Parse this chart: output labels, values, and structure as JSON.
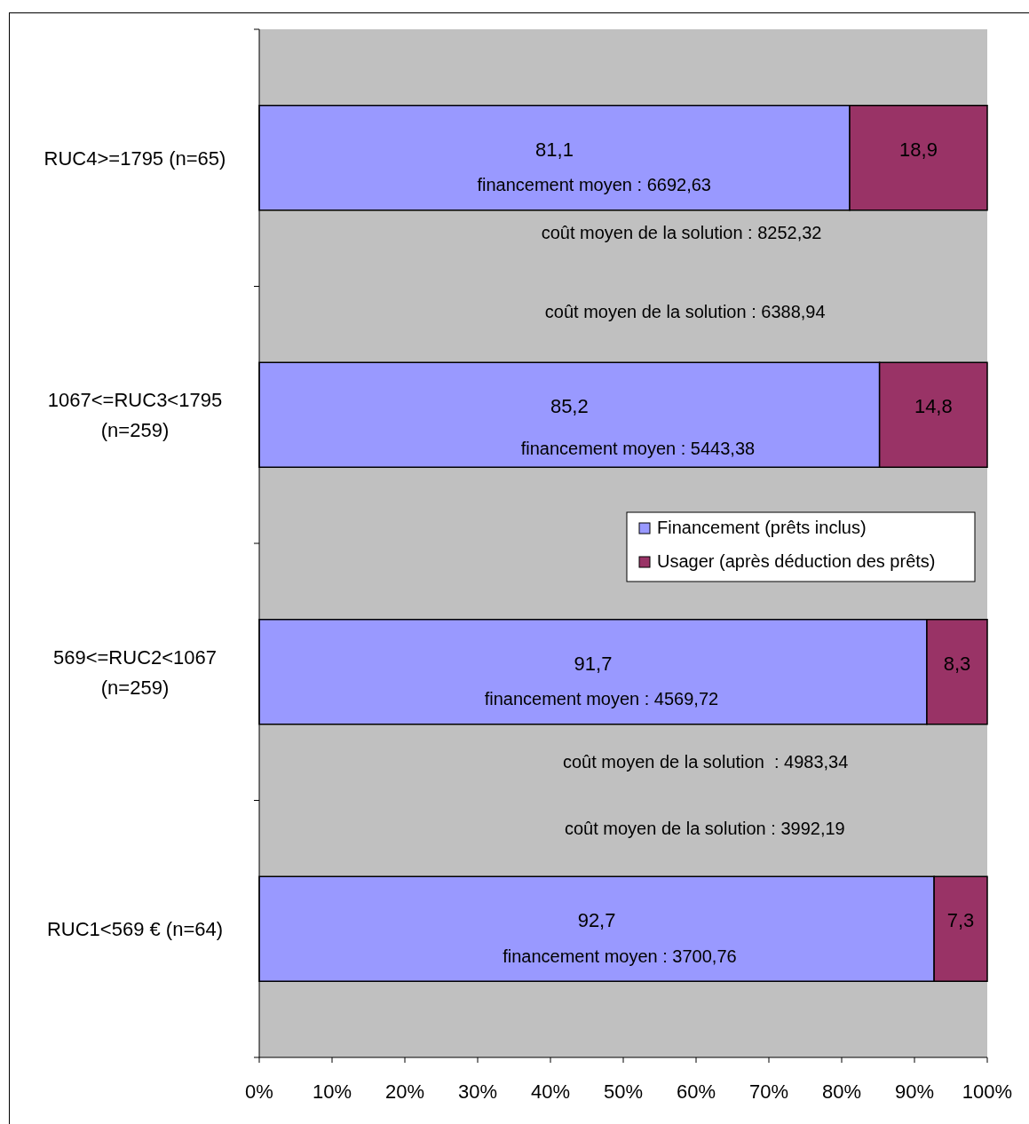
{
  "chart_data": {
    "type": "bar",
    "orientation": "horizontal",
    "stacked": true,
    "legend": "right",
    "categories": [
      "RUC4>=1795 (n=65)",
      "1067<=RUC3<1795 (n=259)",
      "569<=RUC2<1067 (n=259)",
      "RUC1<569 € (n=64)"
    ],
    "series": [
      {
        "name": "Financement (prêts inclus)",
        "color": "#9999ff",
        "values": [
          81.1,
          85.2,
          91.7,
          92.7
        ],
        "value_labels": [
          "81,1",
          "85,2",
          "91,7",
          "92,7"
        ]
      },
      {
        "name": "Usager (après déduction des prêts)",
        "color": "#993366",
        "values": [
          18.9,
          14.8,
          8.3,
          7.3
        ],
        "value_labels": [
          "18,9",
          "14,8",
          "8,3",
          "7,3"
        ]
      }
    ],
    "xlim": [
      0,
      100
    ],
    "xticks": [
      {
        "value": 0,
        "label": "0%"
      },
      {
        "value": 10,
        "label": "10%"
      },
      {
        "value": 20,
        "label": "20%"
      },
      {
        "value": 30,
        "label": "30%"
      },
      {
        "value": 40,
        "label": "40%"
      },
      {
        "value": 50,
        "label": "50%"
      },
      {
        "value": 60,
        "label": "60%"
      },
      {
        "value": 70,
        "label": "70%"
      },
      {
        "value": 80,
        "label": "80%"
      },
      {
        "value": 90,
        "label": "90%"
      },
      {
        "value": 100,
        "label": "100%"
      }
    ],
    "annotations": [
      "financement moyen : 6692,63",
      "coût moyen de la solution : 8252,32",
      "coût moyen de la solution : 6388,94",
      "financement moyen : 5443,38",
      "financement moyen : 4569,72",
      "coût moyen de la solution  : 4983,34",
      "coût moyen de la solution : 3992,19",
      "financement moyen : 3700,76"
    ]
  }
}
